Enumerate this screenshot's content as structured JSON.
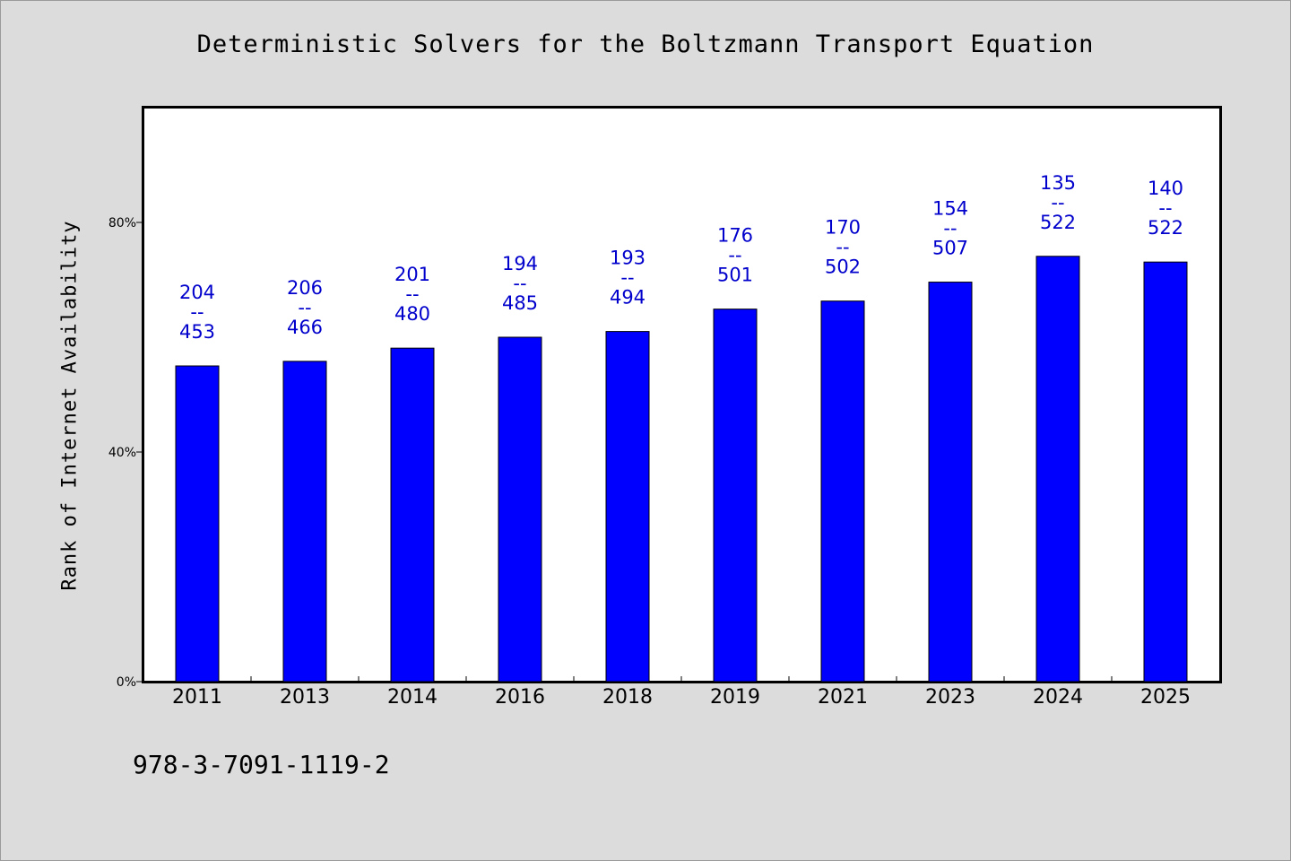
{
  "chart_data": {
    "type": "bar",
    "title": "Deterministic Solvers for the Boltzmann Transport Equation",
    "ylabel": "Rank of Internet Availability",
    "xlabel": "",
    "ylim": [
      0,
      100
    ],
    "yticks": [
      {
        "value": 0,
        "label": "0%"
      },
      {
        "value": 40,
        "label": "40%"
      },
      {
        "value": 80,
        "label": "80%"
      }
    ],
    "categories": [
      "2011",
      "2013",
      "2014",
      "2016",
      "2018",
      "2019",
      "2021",
      "2023",
      "2024",
      "2025"
    ],
    "values": [
      55.0,
      55.8,
      58.1,
      60.0,
      61.0,
      64.9,
      66.3,
      69.6,
      74.1,
      73.1
    ],
    "data_labels": [
      {
        "top": "204",
        "sep": "--",
        "bottom": "453"
      },
      {
        "top": "206",
        "sep": "--",
        "bottom": "466"
      },
      {
        "top": "201",
        "sep": "--",
        "bottom": "480"
      },
      {
        "top": "194",
        "sep": "--",
        "bottom": "485"
      },
      {
        "top": "193",
        "sep": "--",
        "bottom": "494"
      },
      {
        "top": "176",
        "sep": "--",
        "bottom": "501"
      },
      {
        "top": "170",
        "sep": "--",
        "bottom": "502"
      },
      {
        "top": "154",
        "sep": "--",
        "bottom": "507"
      },
      {
        "top": "135",
        "sep": "--",
        "bottom": "522"
      },
      {
        "top": "140",
        "sep": "--",
        "bottom": "522"
      }
    ],
    "grid": false,
    "legend": "none",
    "colors": {
      "bar": "#0000ff",
      "bar_edge": "#000000",
      "data_label": "#0000cc",
      "plot_background": "#ffffff",
      "figure_background": "#dcdcdc"
    }
  },
  "footer": {
    "isbn": "978-3-7091-1119-2"
  }
}
